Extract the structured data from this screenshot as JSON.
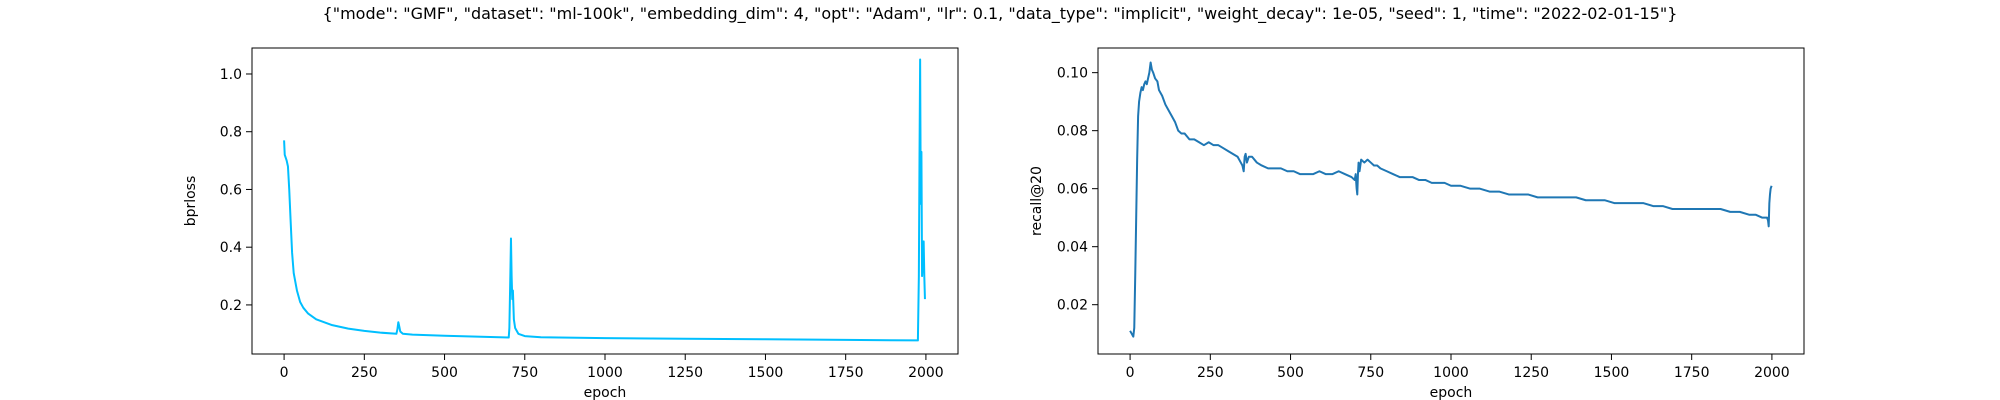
{
  "suptitle": "{\"mode\": \"GMF\", \"dataset\": \"ml-100k\", \"embedding_dim\": 4, \"opt\": \"Adam\", \"lr\": 0.1, \"data_type\": \"implicit\", \"weight_decay\": 1e-05, \"seed\": 1, \"time\": \"2022-02-01-15\"}",
  "chart_data": [
    {
      "type": "line",
      "xlabel": "epoch",
      "ylabel": "bprloss",
      "xlim": [
        -100,
        2100
      ],
      "ylim": [
        0.03,
        1.09
      ],
      "xticks": [
        0,
        250,
        500,
        750,
        1000,
        1250,
        1500,
        1750,
        2000
      ],
      "yticks": [
        0.2,
        0.4,
        0.6,
        0.8,
        1.0
      ],
      "ytick_labels": [
        "0.2",
        "0.4",
        "0.6",
        "0.8",
        "1.0"
      ],
      "grid": false,
      "series": [
        {
          "color": "#00bfff",
          "points": [
            [
              0,
              0.77
            ],
            [
              2,
              0.72
            ],
            [
              5,
              0.71
            ],
            [
              8,
              0.7
            ],
            [
              12,
              0.68
            ],
            [
              16,
              0.6
            ],
            [
              20,
              0.5
            ],
            [
              25,
              0.38
            ],
            [
              30,
              0.31
            ],
            [
              40,
              0.25
            ],
            [
              50,
              0.21
            ],
            [
              60,
              0.19
            ],
            [
              75,
              0.17
            ],
            [
              100,
              0.15
            ],
            [
              150,
              0.13
            ],
            [
              200,
              0.118
            ],
            [
              250,
              0.11
            ],
            [
              300,
              0.104
            ],
            [
              350,
              0.1
            ],
            [
              353,
              0.115
            ],
            [
              356,
              0.14
            ],
            [
              359,
              0.125
            ],
            [
              362,
              0.108
            ],
            [
              370,
              0.1
            ],
            [
              400,
              0.097
            ],
            [
              500,
              0.093
            ],
            [
              600,
              0.09
            ],
            [
              700,
              0.087
            ],
            [
              702,
              0.12
            ],
            [
              705,
              0.3
            ],
            [
              707,
              0.43
            ],
            [
              709,
              0.3
            ],
            [
              711,
              0.22
            ],
            [
              713,
              0.25
            ],
            [
              716,
              0.15
            ],
            [
              720,
              0.12
            ],
            [
              730,
              0.1
            ],
            [
              750,
              0.092
            ],
            [
              800,
              0.088
            ],
            [
              1000,
              0.085
            ],
            [
              1250,
              0.083
            ],
            [
              1500,
              0.081
            ],
            [
              1750,
              0.079
            ],
            [
              1975,
              0.077
            ],
            [
              1978,
              0.3
            ],
            [
              1980,
              0.7
            ],
            [
              1982,
              1.05
            ],
            [
              1984,
              0.55
            ],
            [
              1986,
              0.73
            ],
            [
              1988,
              0.3
            ],
            [
              1990,
              0.35
            ],
            [
              1993,
              0.42
            ],
            [
              1995,
              0.3
            ],
            [
              1997,
              0.22
            ]
          ]
        }
      ]
    },
    {
      "type": "line",
      "xlabel": "epoch",
      "ylabel": "recall@20",
      "xlim": [
        -100,
        2100
      ],
      "ylim": [
        0.003,
        0.1085
      ],
      "xticks": [
        0,
        250,
        500,
        750,
        1000,
        1250,
        1500,
        1750,
        2000
      ],
      "yticks": [
        0.02,
        0.04,
        0.06,
        0.08,
        0.1
      ],
      "ytick_labels": [
        "0.02",
        "0.04",
        "0.06",
        "0.08",
        "0.10"
      ],
      "grid": false,
      "series": [
        {
          "color": "#1f77b4",
          "points": [
            [
              0,
              0.011
            ],
            [
              5,
              0.01
            ],
            [
              10,
              0.009
            ],
            [
              13,
              0.012
            ],
            [
              16,
              0.03
            ],
            [
              19,
              0.05
            ],
            [
              22,
              0.07
            ],
            [
              25,
              0.085
            ],
            [
              28,
              0.09
            ],
            [
              32,
              0.093
            ],
            [
              36,
              0.095
            ],
            [
              40,
              0.094
            ],
            [
              44,
              0.096
            ],
            [
              48,
              0.097
            ],
            [
              52,
              0.096
            ],
            [
              56,
              0.098
            ],
            [
              60,
              0.1
            ],
            [
              64,
              0.1035
            ],
            [
              68,
              0.101
            ],
            [
              72,
              0.1
            ],
            [
              78,
              0.098
            ],
            [
              85,
              0.097
            ],
            [
              90,
              0.094
            ],
            [
              100,
              0.092
            ],
            [
              110,
              0.089
            ],
            [
              120,
              0.087
            ],
            [
              130,
              0.085
            ],
            [
              140,
              0.083
            ],
            [
              150,
              0.08
            ],
            [
              160,
              0.079
            ],
            [
              170,
              0.079
            ],
            [
              185,
              0.077
            ],
            [
              200,
              0.077
            ],
            [
              215,
              0.076
            ],
            [
              230,
              0.075
            ],
            [
              245,
              0.076
            ],
            [
              260,
              0.075
            ],
            [
              275,
              0.075
            ],
            [
              290,
              0.074
            ],
            [
              305,
              0.073
            ],
            [
              320,
              0.072
            ],
            [
              335,
              0.071
            ],
            [
              345,
              0.069
            ],
            [
              350,
              0.068
            ],
            [
              354,
              0.066
            ],
            [
              357,
              0.071
            ],
            [
              360,
              0.072
            ],
            [
              364,
              0.069
            ],
            [
              370,
              0.071
            ],
            [
              380,
              0.071
            ],
            [
              395,
              0.069
            ],
            [
              410,
              0.068
            ],
            [
              430,
              0.067
            ],
            [
              450,
              0.067
            ],
            [
              470,
              0.067
            ],
            [
              490,
              0.066
            ],
            [
              510,
              0.066
            ],
            [
              530,
              0.065
            ],
            [
              550,
              0.065
            ],
            [
              570,
              0.065
            ],
            [
              590,
              0.066
            ],
            [
              610,
              0.065
            ],
            [
              630,
              0.065
            ],
            [
              650,
              0.066
            ],
            [
              670,
              0.065
            ],
            [
              690,
              0.064
            ],
            [
              700,
              0.063
            ],
            [
              703,
              0.065
            ],
            [
              706,
              0.06
            ],
            [
              708,
              0.058
            ],
            [
              710,
              0.065
            ],
            [
              712,
              0.069
            ],
            [
              715,
              0.066
            ],
            [
              720,
              0.07
            ],
            [
              730,
              0.069
            ],
            [
              740,
              0.07
            ],
            [
              750,
              0.069
            ],
            [
              760,
              0.068
            ],
            [
              770,
              0.068
            ],
            [
              780,
              0.067
            ],
            [
              800,
              0.066
            ],
            [
              820,
              0.065
            ],
            [
              840,
              0.064
            ],
            [
              860,
              0.064
            ],
            [
              880,
              0.064
            ],
            [
              900,
              0.063
            ],
            [
              920,
              0.063
            ],
            [
              940,
              0.062
            ],
            [
              960,
              0.062
            ],
            [
              980,
              0.062
            ],
            [
              1000,
              0.061
            ],
            [
              1030,
              0.061
            ],
            [
              1060,
              0.06
            ],
            [
              1090,
              0.06
            ],
            [
              1120,
              0.059
            ],
            [
              1150,
              0.059
            ],
            [
              1180,
              0.058
            ],
            [
              1210,
              0.058
            ],
            [
              1240,
              0.058
            ],
            [
              1270,
              0.057
            ],
            [
              1300,
              0.057
            ],
            [
              1330,
              0.057
            ],
            [
              1360,
              0.057
            ],
            [
              1390,
              0.057
            ],
            [
              1420,
              0.056
            ],
            [
              1450,
              0.056
            ],
            [
              1480,
              0.056
            ],
            [
              1510,
              0.055
            ],
            [
              1540,
              0.055
            ],
            [
              1570,
              0.055
            ],
            [
              1600,
              0.055
            ],
            [
              1630,
              0.054
            ],
            [
              1660,
              0.054
            ],
            [
              1690,
              0.053
            ],
            [
              1720,
              0.053
            ],
            [
              1750,
              0.053
            ],
            [
              1780,
              0.053
            ],
            [
              1810,
              0.053
            ],
            [
              1840,
              0.053
            ],
            [
              1870,
              0.052
            ],
            [
              1900,
              0.052
            ],
            [
              1930,
              0.051
            ],
            [
              1950,
              0.051
            ],
            [
              1970,
              0.05
            ],
            [
              1985,
              0.05
            ],
            [
              1988,
              0.049
            ],
            [
              1990,
              0.047
            ],
            [
              1992,
              0.055
            ],
            [
              1994,
              0.058
            ],
            [
              1996,
              0.06
            ],
            [
              1999,
              0.061
            ]
          ]
        }
      ]
    }
  ]
}
